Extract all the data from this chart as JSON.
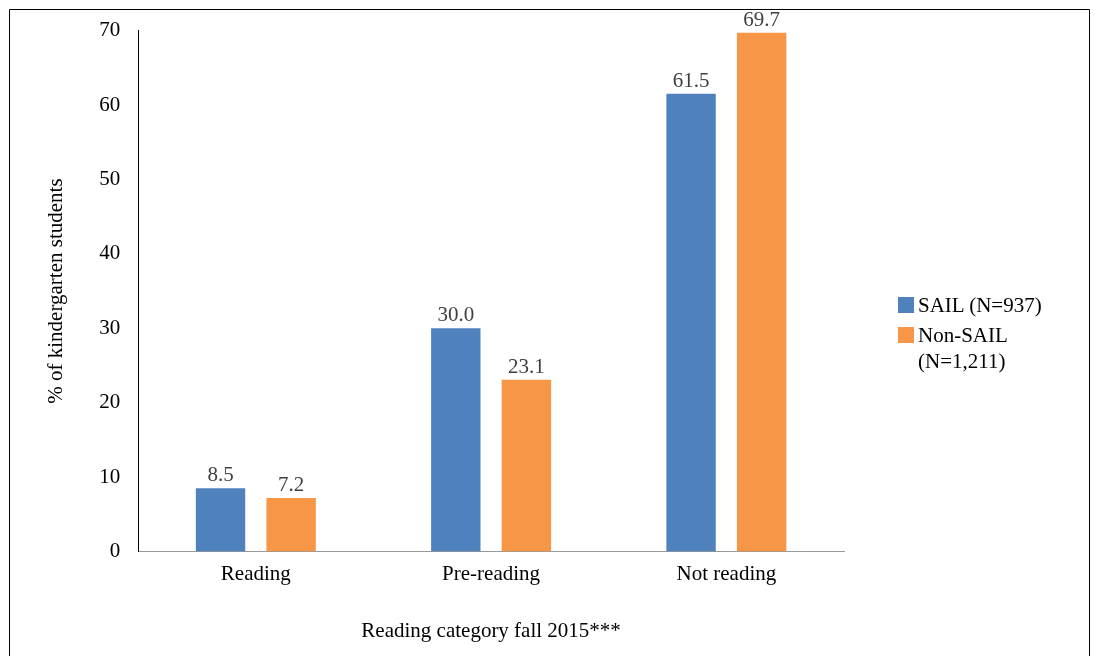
{
  "chart_data": {
    "type": "bar",
    "xlabel": "Reading category fall 2015***",
    "ylabel": "% of kindergarten students",
    "categories": [
      "Reading",
      "Pre-reading",
      "Not reading"
    ],
    "series": [
      {
        "name": "SAIL (N=937)",
        "color": "#4f81bd",
        "values": [
          8.5,
          30.0,
          61.5
        ]
      },
      {
        "name": "Non-SAIL (N=1,211)",
        "color": "#f79646",
        "values": [
          7.2,
          23.1,
          69.7
        ]
      }
    ],
    "value_labels": [
      [
        "8.5",
        "30.0",
        "61.5"
      ],
      [
        "7.2",
        "23.1",
        "69.7"
      ]
    ],
    "ylim": [
      0,
      70
    ],
    "yticks": [
      0,
      10,
      20,
      30,
      40,
      50,
      60,
      70
    ],
    "grid": false,
    "legend": "right"
  }
}
